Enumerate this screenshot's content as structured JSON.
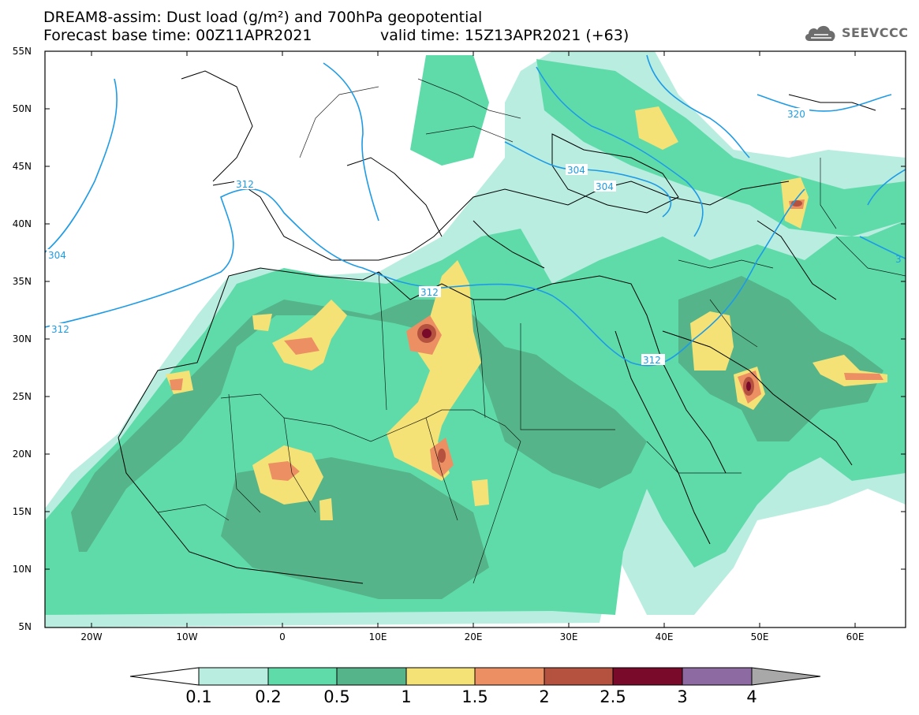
{
  "header": {
    "title_line1": "DREAM8-assim: Dust load (g/m²) and 700hPa geopotential",
    "title_line2": "Forecast base time: 00Z11APR2021",
    "valid_time": "valid time: 15Z13APR2021 (+63)"
  },
  "logo": {
    "text": "SEEVCCC",
    "icon": "cloud-icon"
  },
  "axes": {
    "lat_labels": [
      "55N",
      "50N",
      "45N",
      "40N",
      "35N",
      "30N",
      "25N",
      "20N",
      "15N",
      "10N",
      "5N"
    ],
    "lon_labels": [
      "20W",
      "10W",
      "0",
      "10E",
      "20E",
      "30E",
      "40E",
      "50E",
      "60E"
    ]
  },
  "contours": {
    "labels": [
      "312",
      "304",
      "304",
      "312",
      "312",
      "304",
      "312",
      "320",
      "3"
    ],
    "color": "#1e9be6"
  },
  "colorbar": {
    "ticks": [
      "0.1",
      "0.2",
      "0.5",
      "1",
      "1.5",
      "2",
      "2.5",
      "3",
      "4"
    ],
    "colors": [
      "#ffffff",
      "#b9ede0",
      "#5fdbaa",
      "#55b489",
      "#f5e277",
      "#ec9064",
      "#b4523f",
      "#7a0a2a",
      "#8e6aa2",
      "#a8a8a8"
    ]
  }
}
